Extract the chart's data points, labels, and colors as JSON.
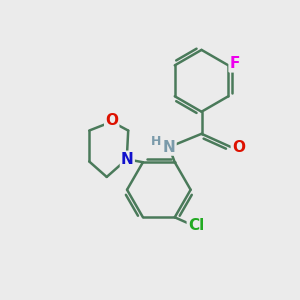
{
  "background_color": "#ebebeb",
  "bond_color": "#4a7a5a",
  "bond_width": 1.8,
  "atom_colors": {
    "F": "#ee00ee",
    "O": "#dd1100",
    "N_amide": "#7a9aaa",
    "N_morph": "#1111cc",
    "Cl": "#22aa22",
    "H": "#7a9aaa"
  },
  "font_size_large": 11,
  "font_size_small": 9
}
